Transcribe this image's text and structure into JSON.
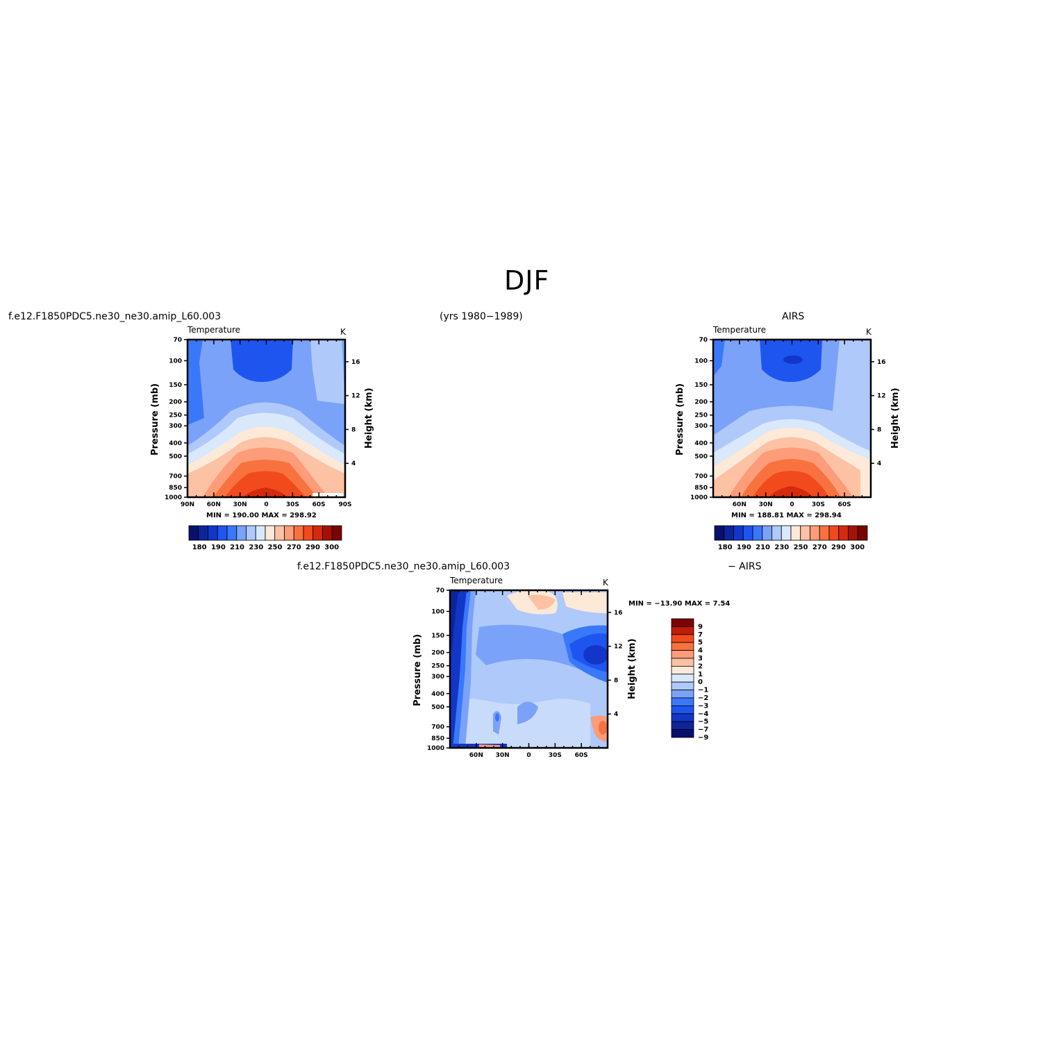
{
  "page": {
    "title": "DJF",
    "case_name": "f.e12.F1850PDC5.ne30_ne30.amip_L60.003",
    "years": "(yrs  1980−1989)",
    "obs_name": "AIRS",
    "diff_case_name": "f.e12.F1850PDC5.ne30_ne30.amip_L60.003",
    "diff_obs_name": "− AIRS"
  },
  "panels": [
    {
      "id": "model",
      "variable": "Temperature",
      "units": "K",
      "left_axis_label": "Pressure  (mb)",
      "right_axis_label": "Height  (km)",
      "pressure_ticks": [
        "70",
        "100",
        "150",
        "200",
        "250",
        "300",
        "400",
        "500",
        "700",
        "850",
        "1000"
      ],
      "height_ticks": [
        "16",
        "12",
        "8",
        "4"
      ],
      "lat_ticks": [
        "90N",
        "60N",
        "30N",
        "0",
        "30S",
        "60S",
        "90S"
      ],
      "min_max": "MIN = 190.00   MAX = 298.92",
      "colorbar_labels": [
        "180",
        "190",
        "210",
        "230",
        "250",
        "270",
        "290",
        "300"
      ]
    },
    {
      "id": "obs",
      "variable": "Temperature",
      "units": "K",
      "left_axis_label": "Pressure  (mb)",
      "right_axis_label": "Height  (km)",
      "pressure_ticks": [
        "70",
        "100",
        "150",
        "200",
        "250",
        "300",
        "400",
        "500",
        "700",
        "850",
        "1000"
      ],
      "height_ticks": [
        "16",
        "12",
        "8",
        "4"
      ],
      "lat_ticks": [
        "60N",
        "30N",
        "0",
        "30S",
        "60S"
      ],
      "min_max": "MIN = 188.81   MAX = 298.94",
      "colorbar_labels": [
        "180",
        "190",
        "210",
        "230",
        "250",
        "270",
        "290",
        "300"
      ]
    },
    {
      "id": "diff",
      "variable": "Temperature",
      "units": "K",
      "left_axis_label": "Pressure  (mb)",
      "right_axis_label": "Height  (km)",
      "pressure_ticks": [
        "70",
        "100",
        "150",
        "200",
        "250",
        "300",
        "400",
        "500",
        "700",
        "850",
        "1000"
      ],
      "height_ticks": [
        "16",
        "12",
        "8",
        "4"
      ],
      "lat_ticks": [
        "60N",
        "30N",
        "0",
        "30S",
        "60S"
      ],
      "min_max": "MIN = −13.90   MAX =    7.54",
      "colorbar_labels": [
        "9",
        "7",
        "5",
        "4",
        "3",
        "2",
        "1",
        "0",
        "−1",
        "−2",
        "−3",
        "−4",
        "−5",
        "−7",
        "−9"
      ]
    }
  ],
  "colors": {
    "temp_scale": [
      "#08106e",
      "#0c249c",
      "#1236c8",
      "#1f55ef",
      "#3a78fa",
      "#7ba2f9",
      "#aec9fa",
      "#d9e8fb",
      "#fde9d8",
      "#fdc1a3",
      "#fc9c78",
      "#f7723f",
      "#f14a1d",
      "#d52a0e",
      "#a51205",
      "#7a0402"
    ],
    "diff_scale": [
      "#7a0402",
      "#c21c09",
      "#f14a1d",
      "#f7723f",
      "#fc9c78",
      "#fdc1a3",
      "#fde9d8",
      "#d9e8fb",
      "#aec9fa",
      "#7ba2f9",
      "#3a78fa",
      "#1f55ef",
      "#1236c8",
      "#0c249c",
      "#08106e"
    ]
  },
  "chart_data": [
    {
      "type": "heatmap",
      "title": "Temperature",
      "units": "K",
      "xlabel": "",
      "ylabel": "Pressure  (mb)",
      "y2label": "Height  (km)",
      "x_ticks": [
        "90N",
        "60N",
        "30N",
        "0",
        "30S",
        "60S",
        "90S"
      ],
      "y_ticks": [
        70,
        100,
        150,
        200,
        250,
        300,
        400,
        500,
        700,
        850,
        1000
      ],
      "y_log": true,
      "min": 190.0,
      "max": 298.92,
      "levels": [
        180,
        185,
        190,
        200,
        210,
        220,
        230,
        240,
        250,
        260,
        270,
        280,
        290,
        295,
        300
      ]
    },
    {
      "type": "heatmap",
      "title": "Temperature",
      "units": "K",
      "xlabel": "",
      "ylabel": "Pressure  (mb)",
      "y2label": "Height  (km)",
      "x_ticks": [
        "60N",
        "30N",
        "0",
        "30S",
        "60S"
      ],
      "y_ticks": [
        70,
        100,
        150,
        200,
        250,
        300,
        400,
        500,
        700,
        850,
        1000
      ],
      "y_log": true,
      "min": 188.81,
      "max": 298.94,
      "levels": [
        180,
        185,
        190,
        200,
        210,
        220,
        230,
        240,
        250,
        260,
        270,
        280,
        290,
        295,
        300
      ]
    },
    {
      "type": "heatmap",
      "title": "Temperature",
      "units": "K",
      "xlabel": "",
      "ylabel": "Pressure  (mb)",
      "y2label": "Height  (km)",
      "x_ticks": [
        "60N",
        "30N",
        "0",
        "30S",
        "60S"
      ],
      "y_ticks": [
        70,
        100,
        150,
        200,
        250,
        300,
        400,
        500,
        700,
        850,
        1000
      ],
      "y_log": true,
      "min": -13.9,
      "max": 7.54,
      "levels": [
        -9,
        -7,
        -5,
        -4,
        -3,
        -2,
        -1,
        0,
        1,
        2,
        3,
        4,
        5,
        7,
        9
      ]
    }
  ]
}
